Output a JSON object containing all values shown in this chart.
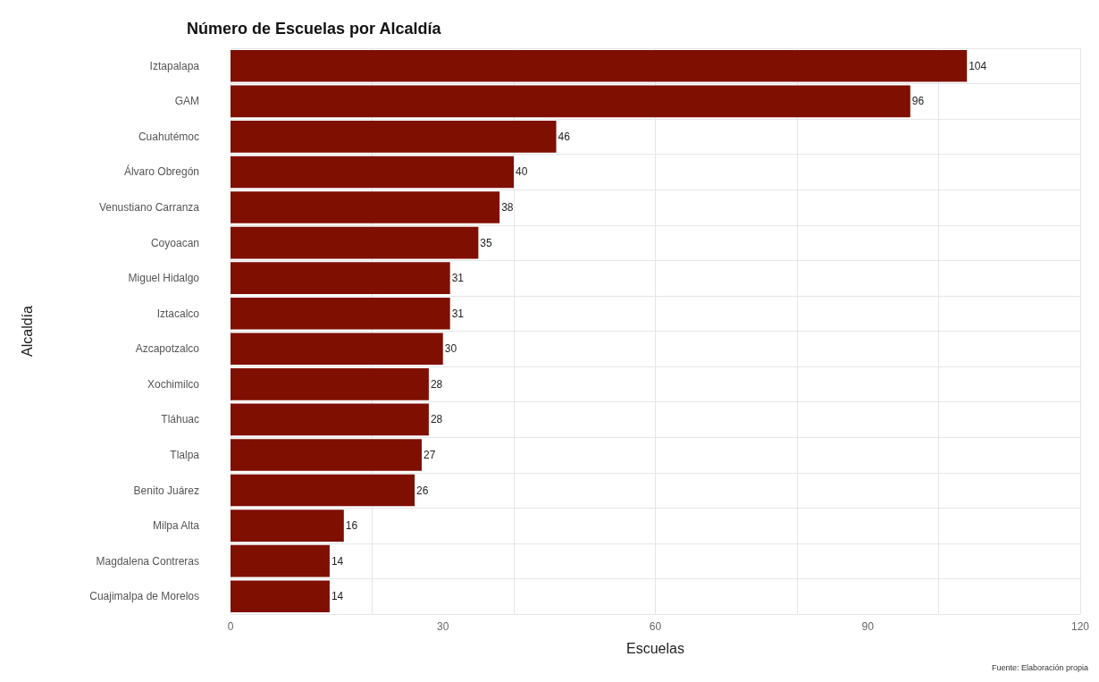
{
  "chart_data": {
    "type": "bar",
    "orientation": "horizontal",
    "title": "Número de Escuelas por Alcaldía",
    "xlabel": "Escuelas",
    "ylabel": "Alcaldía",
    "categories": [
      "Iztapalapa",
      "GAM",
      "Cuahutémoc",
      "Álvaro Obregón",
      "Venustiano Carranza",
      "Coyoacan",
      "Miguel Hidalgo",
      "Iztacalco",
      "Azcapotzalco",
      "Xochimilco",
      "Tláhuac",
      "Tlalpa",
      "Benito Juárez",
      "Milpa Alta",
      "Magdalena Contreras",
      "Cuajimalpa de Morelos"
    ],
    "values": [
      104,
      96,
      46,
      40,
      38,
      35,
      31,
      31,
      30,
      28,
      28,
      27,
      26,
      16,
      14,
      14
    ],
    "color": "#7f0f00",
    "xlim": [
      0,
      120
    ],
    "xticks": [
      0,
      30,
      60,
      90,
      120
    ],
    "grid": true,
    "data_labels": true,
    "annotations": [
      "Fuente: Elaboración propia"
    ]
  }
}
